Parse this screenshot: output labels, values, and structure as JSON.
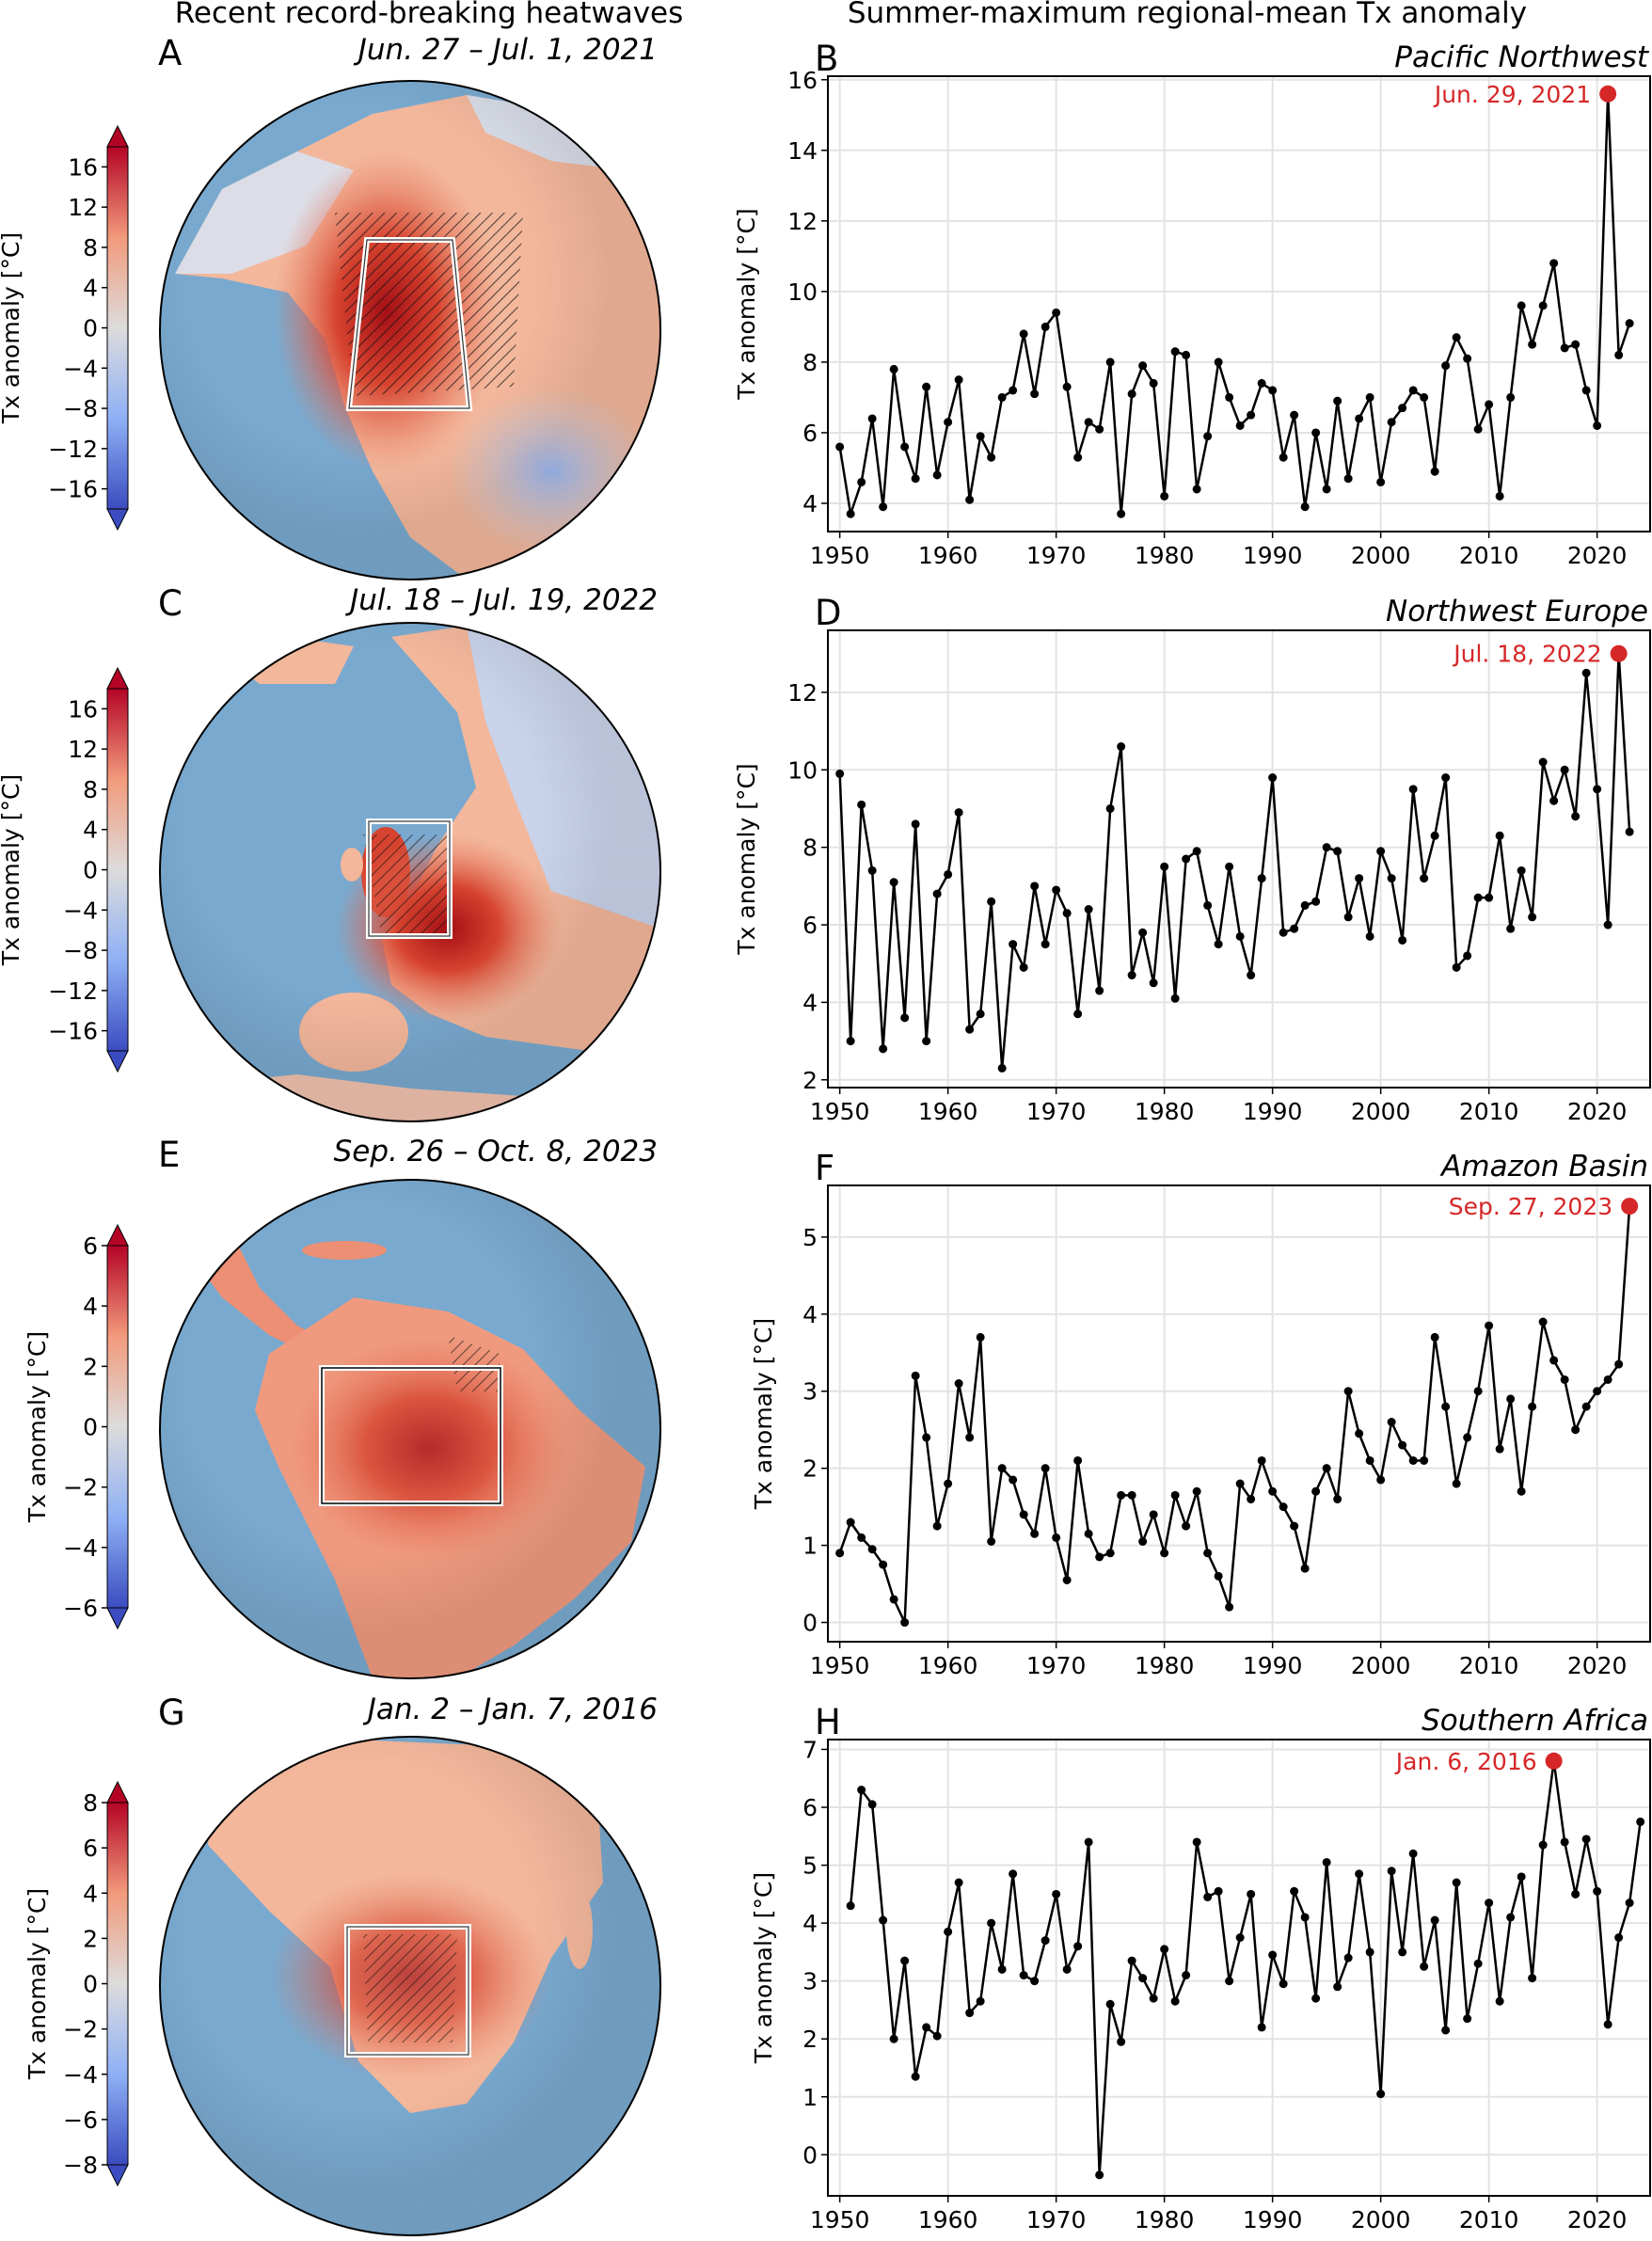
{
  "left_title": "Recent record-breaking heatwaves",
  "right_title": "Summer-maximum regional-mean Tx anomaly",
  "colors": {
    "ocean": "#79a9cf",
    "land": "#f3b79b",
    "hot": "#d6432f",
    "hottest": "#a50f15",
    "cool": "#b9cbea",
    "series": "#000000",
    "highlight": "#d62728"
  },
  "maps": [
    {
      "letter": "A",
      "date": "Jun. 27 – Jul. 1, 2021",
      "colorbar": {
        "label": "Tx anomaly [°C]",
        "range": [
          -18,
          18
        ],
        "ticks": [
          -16,
          -12,
          -8,
          -4,
          0,
          4,
          8,
          12,
          16
        ]
      }
    },
    {
      "letter": "C",
      "date": "Jul. 18 – Jul. 19, 2022",
      "colorbar": {
        "label": "Tx anomaly [°C]",
        "range": [
          -18,
          18
        ],
        "ticks": [
          -16,
          -12,
          -8,
          -4,
          0,
          4,
          8,
          12,
          16
        ]
      }
    },
    {
      "letter": "E",
      "date": "Sep. 26 – Oct. 8, 2023",
      "colorbar": {
        "label": "Tx anomaly [°C]",
        "range": [
          -6,
          6
        ],
        "ticks": [
          -6,
          -4,
          -2,
          0,
          2,
          4,
          6
        ]
      }
    },
    {
      "letter": "G",
      "date": "Jan. 2 – Jan. 7, 2016",
      "colorbar": {
        "label": "Tx anomaly [°C]",
        "range": [
          -8,
          8
        ],
        "ticks": [
          -8,
          -6,
          -4,
          -2,
          0,
          2,
          4,
          6,
          8
        ]
      }
    }
  ],
  "chart_data": [
    {
      "type": "line",
      "letter": "B",
      "title": "Pacific Northwest",
      "ylabel": "Tx anomaly [°C]",
      "xlabel": "",
      "x_start": 1950,
      "xlim": [
        1948.9,
        2024.9
      ],
      "ylim": [
        3.2,
        16.1
      ],
      "xticks": [
        1950,
        1960,
        1970,
        1980,
        1990,
        2000,
        2010,
        2020
      ],
      "yticks": [
        4,
        6,
        8,
        10,
        12,
        14,
        16
      ],
      "grid": true,
      "values": [
        5.6,
        3.7,
        4.6,
        6.4,
        3.9,
        7.8,
        5.6,
        4.7,
        7.3,
        4.8,
        6.3,
        7.5,
        4.1,
        5.9,
        5.3,
        7.0,
        7.2,
        8.8,
        7.1,
        9.0,
        9.4,
        7.3,
        5.3,
        6.3,
        6.1,
        8.0,
        3.7,
        7.1,
        7.9,
        7.4,
        4.2,
        8.3,
        8.2,
        4.4,
        5.9,
        8.0,
        7.0,
        6.2,
        6.5,
        7.4,
        7.2,
        5.3,
        6.5,
        3.9,
        6.0,
        4.4,
        6.9,
        4.7,
        6.4,
        7.0,
        4.6,
        6.3,
        6.7,
        7.2,
        7.0,
        4.9,
        7.9,
        8.7,
        8.1,
        6.1,
        6.8,
        4.2,
        7.0,
        9.6,
        8.5,
        9.6,
        10.8,
        8.4,
        8.5,
        7.2,
        6.2,
        15.6,
        8.2,
        9.1
      ],
      "highlight": {
        "year": 2021,
        "label": "Jun. 29, 2021"
      }
    },
    {
      "type": "line",
      "letter": "D",
      "title": "Northwest Europe",
      "ylabel": "Tx anomaly [°C]",
      "xlabel": "",
      "x_start": 1950,
      "xlim": [
        1948.9,
        2024.9
      ],
      "ylim": [
        1.8,
        13.6
      ],
      "xticks": [
        1950,
        1960,
        1970,
        1980,
        1990,
        2000,
        2010,
        2020
      ],
      "yticks": [
        2,
        4,
        6,
        8,
        10,
        12
      ],
      "grid": true,
      "values": [
        9.9,
        3.0,
        9.1,
        7.4,
        2.8,
        7.1,
        3.6,
        8.6,
        3.0,
        6.8,
        7.3,
        8.9,
        3.3,
        3.7,
        6.6,
        2.3,
        5.5,
        4.9,
        7.0,
        5.5,
        6.9,
        6.3,
        3.7,
        6.4,
        4.3,
        9.0,
        10.6,
        4.7,
        5.8,
        4.5,
        7.5,
        4.1,
        7.7,
        7.9,
        6.5,
        5.5,
        7.5,
        5.7,
        4.7,
        7.2,
        9.8,
        5.8,
        5.9,
        6.5,
        6.6,
        8.0,
        7.9,
        6.2,
        7.2,
        5.7,
        7.9,
        7.2,
        5.6,
        9.5,
        7.2,
        8.3,
        9.8,
        4.9,
        5.2,
        6.7,
        6.7,
        8.3,
        5.9,
        7.4,
        6.2,
        10.2,
        9.2,
        10.0,
        8.8,
        12.5,
        9.5,
        6.0,
        13.0,
        8.4
      ],
      "highlight": {
        "year": 2022,
        "label": "Jul. 18, 2022"
      }
    },
    {
      "type": "line",
      "letter": "F",
      "title": "Amazon Basin",
      "ylabel": "Tx anomaly [°C]",
      "xlabel": "",
      "x_start": 1950,
      "xlim": [
        1948.9,
        2024.9
      ],
      "ylim": [
        -0.25,
        5.67
      ],
      "xticks": [
        1950,
        1960,
        1970,
        1980,
        1990,
        2000,
        2010,
        2020
      ],
      "yticks": [
        0,
        1,
        2,
        3,
        4,
        5
      ],
      "grid": true,
      "values": [
        0.9,
        1.3,
        1.1,
        0.95,
        0.75,
        0.3,
        0.0,
        3.2,
        2.4,
        1.25,
        1.8,
        3.1,
        2.4,
        3.7,
        1.05,
        2.0,
        1.85,
        1.4,
        1.15,
        2.0,
        1.1,
        0.55,
        2.1,
        1.15,
        0.85,
        0.9,
        1.65,
        1.65,
        1.05,
        1.4,
        0.9,
        1.65,
        1.25,
        1.7,
        0.9,
        0.6,
        0.2,
        1.8,
        1.6,
        2.1,
        1.7,
        1.5,
        1.25,
        0.7,
        1.7,
        2.0,
        1.6,
        3.0,
        2.45,
        2.1,
        1.85,
        2.6,
        2.3,
        2.1,
        2.1,
        3.7,
        2.8,
        1.8,
        2.4,
        3.0,
        3.85,
        2.25,
        2.9,
        1.7,
        2.8,
        3.9,
        3.4,
        3.15,
        2.5,
        2.8,
        3.0,
        3.15,
        3.35,
        5.4
      ],
      "highlight": {
        "year": 2023,
        "label": "Sep. 27, 2023"
      }
    },
    {
      "type": "line",
      "letter": "H",
      "title": "Southern Africa",
      "ylabel": "Tx anomaly [°C]",
      "xlabel": "",
      "x_start": 1951,
      "xlim": [
        1948.9,
        2024.9
      ],
      "ylim": [
        -0.71,
        7.17
      ],
      "xticks": [
        1950,
        1960,
        1970,
        1980,
        1990,
        2000,
        2010,
        2020
      ],
      "yticks": [
        0,
        1,
        2,
        3,
        4,
        5,
        6,
        7
      ],
      "grid": true,
      "values": [
        4.3,
        6.3,
        6.05,
        4.05,
        2.0,
        3.35,
        1.35,
        2.2,
        2.05,
        3.85,
        4.7,
        2.45,
        2.65,
        4.0,
        3.2,
        4.85,
        3.1,
        3.0,
        3.7,
        4.5,
        3.2,
        3.6,
        5.4,
        -0.35,
        2.6,
        1.95,
        3.35,
        3.05,
        2.7,
        3.55,
        2.65,
        3.1,
        5.4,
        4.45,
        4.55,
        3.0,
        3.75,
        4.5,
        2.2,
        3.45,
        2.95,
        4.55,
        4.1,
        2.7,
        5.05,
        2.9,
        3.4,
        4.85,
        3.5,
        1.05,
        4.9,
        3.5,
        5.2,
        3.25,
        4.05,
        2.15,
        4.7,
        2.35,
        3.3,
        4.35,
        2.65,
        4.1,
        4.8,
        3.05,
        5.35,
        6.8,
        5.4,
        4.5,
        5.45,
        4.55,
        2.25,
        3.75,
        4.35,
        5.75
      ],
      "highlight": {
        "year": 2016,
        "label": "Jan. 6, 2016"
      }
    }
  ]
}
